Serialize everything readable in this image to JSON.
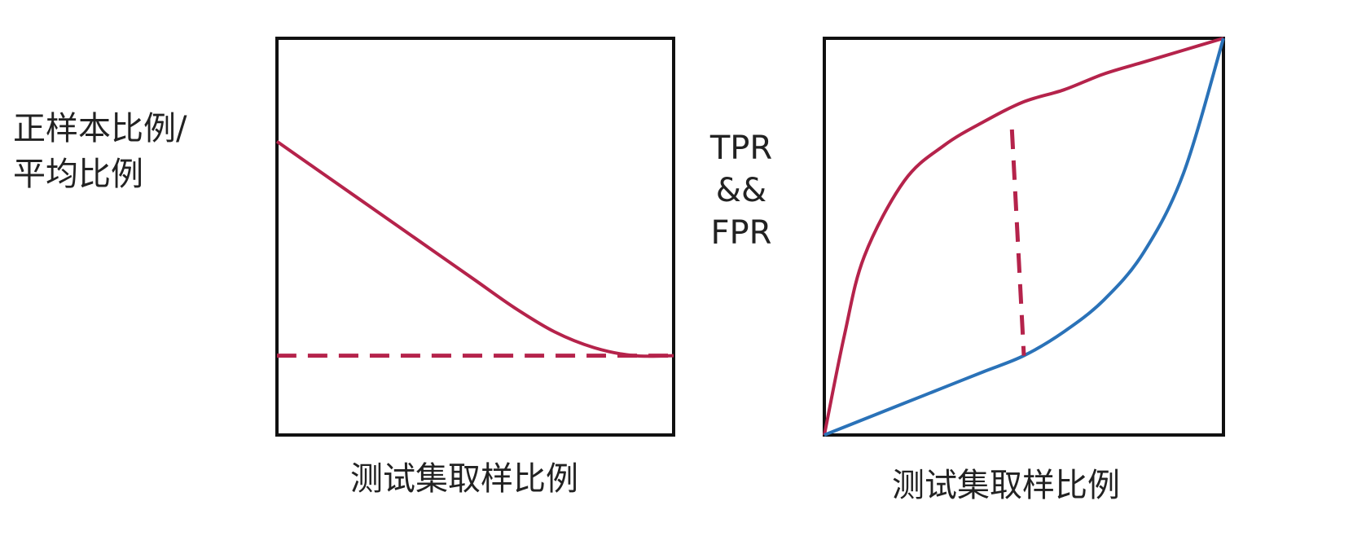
{
  "chart_data": [
    {
      "type": "line",
      "title": "",
      "xlabel": "测试集取样比例",
      "ylabel": "正样本比例/\n平均比例",
      "xlim": [
        0,
        1
      ],
      "ylim": [
        0,
        1
      ],
      "grid": false,
      "series": [
        {
          "color": "#b5234b",
          "style": "solid",
          "x": [
            0,
            0.1,
            0.2,
            0.3,
            0.4,
            0.5,
            0.6,
            0.7,
            0.8,
            0.9,
            1.0
          ],
          "y": [
            0.74,
            0.67,
            0.6,
            0.53,
            0.46,
            0.39,
            0.32,
            0.26,
            0.22,
            0.2,
            0.2
          ]
        },
        {
          "color": "#b5234b",
          "style": "dashed",
          "x": [
            0,
            1
          ],
          "y": [
            0.2,
            0.2
          ]
        }
      ]
    },
    {
      "type": "line",
      "title": "",
      "xlabel": "测试集取样比例",
      "ylabel": "TPR\n&&\nFPR",
      "xlim": [
        0,
        1
      ],
      "ylim": [
        0,
        1
      ],
      "grid": false,
      "series": [
        {
          "color": "#b5234b",
          "style": "solid",
          "x": [
            0,
            0.05,
            0.1,
            0.2,
            0.3,
            0.4,
            0.5,
            0.6,
            0.7,
            0.8,
            0.9,
            1.0
          ],
          "y": [
            0,
            0.25,
            0.45,
            0.64,
            0.73,
            0.79,
            0.84,
            0.87,
            0.91,
            0.94,
            0.97,
            1.0
          ]
        },
        {
          "color": "#2a72b8",
          "style": "solid",
          "x": [
            0,
            0.1,
            0.2,
            0.3,
            0.4,
            0.5,
            0.6,
            0.7,
            0.8,
            0.9,
            1.0
          ],
          "y": [
            0,
            0.04,
            0.08,
            0.12,
            0.16,
            0.2,
            0.26,
            0.34,
            0.46,
            0.66,
            1.0
          ]
        },
        {
          "color": "#b5234b",
          "style": "dashed",
          "x": [
            0.47,
            0.5
          ],
          "y": [
            0.77,
            0.2
          ]
        }
      ]
    }
  ]
}
